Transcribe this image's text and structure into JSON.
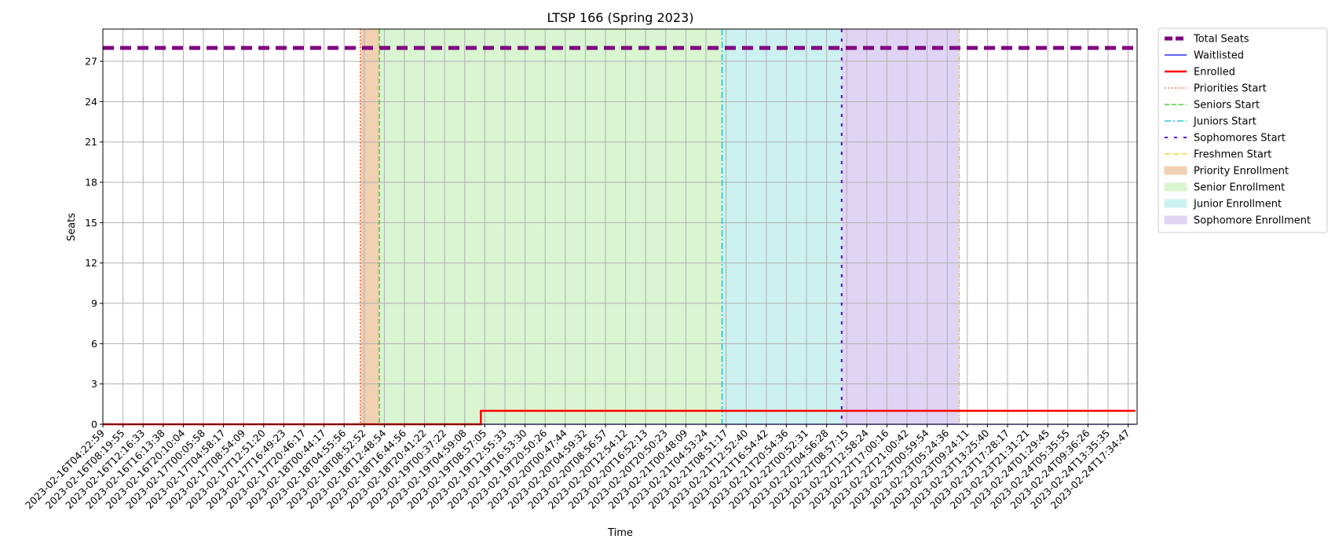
{
  "chart_data": {
    "type": "line",
    "title": "LTSP 166 (Spring 2023)",
    "xlabel": "Time",
    "ylabel": "Seats",
    "ylim": [
      0,
      29.4
    ],
    "yticks": [
      0,
      3,
      6,
      9,
      12,
      15,
      18,
      21,
      24,
      27
    ],
    "grid": true,
    "legend_position": "outside-right-top",
    "x_categories": [
      "2023-02-16T04:22:59",
      "2023-02-16T08:19:55",
      "2023-02-16T12:16:33",
      "2023-02-16T16:13:38",
      "2023-02-16T20:10:04",
      "2023-02-17T00:05:58",
      "2023-02-17T04:58:17",
      "2023-02-17T08:54:09",
      "2023-02-17T12:51:20",
      "2023-02-17T16:49:23",
      "2023-02-17T20:46:17",
      "2023-02-18T00:44:17",
      "2023-02-18T04:55:56",
      "2023-02-18T08:52:52",
      "2023-02-18T12:48:54",
      "2023-02-18T16:44:56",
      "2023-02-18T20:41:22",
      "2023-02-19T00:37:22",
      "2023-02-19T04:59:08",
      "2023-02-19T08:57:05",
      "2023-02-19T12:55:33",
      "2023-02-19T16:53:30",
      "2023-02-19T20:50:26",
      "2023-02-20T00:47:44",
      "2023-02-20T04:59:32",
      "2023-02-20T08:56:57",
      "2023-02-20T12:54:12",
      "2023-02-20T16:52:13",
      "2023-02-20T20:50:23",
      "2023-02-21T00:48:09",
      "2023-02-21T04:53:24",
      "2023-02-21T08:51:17",
      "2023-02-21T12:52:40",
      "2023-02-21T16:54:42",
      "2023-02-21T20:54:36",
      "2023-02-22T00:52:31",
      "2023-02-22T04:56:28",
      "2023-02-22T08:57:15",
      "2023-02-22T12:58:24",
      "2023-02-22T17:00:16",
      "2023-02-22T21:00:42",
      "2023-02-23T00:59:54",
      "2023-02-23T05:24:36",
      "2023-02-23T09:24:11",
      "2023-02-23T13:25:40",
      "2023-02-23T17:28:17",
      "2023-02-23T21:31:21",
      "2023-02-24T01:29:45",
      "2023-02-24T05:35:55",
      "2023-02-24T09:36:26",
      "2023-02-24T13:35:35",
      "2023-02-24T17:34:47"
    ],
    "series": [
      {
        "name": "Total Seats",
        "color": "#800080",
        "style": "dashed-thick",
        "points": [
          [
            0,
            28
          ],
          [
            51.35,
            28
          ]
        ]
      },
      {
        "name": "Waitlisted",
        "color": "#0000ff",
        "style": "solid-thin",
        "points": [
          [
            0,
            0
          ],
          [
            51.35,
            0
          ]
        ]
      },
      {
        "name": "Enrolled",
        "color": "#ff0000",
        "style": "solid-thick",
        "points": [
          [
            0,
            0
          ],
          [
            18.8,
            0
          ],
          [
            18.8,
            1
          ],
          [
            51.35,
            1
          ]
        ]
      }
    ],
    "events": [
      {
        "name": "Priorities Start",
        "x": 12.8,
        "color": "#ff2a00",
        "style": "dotted"
      },
      {
        "name": "Seniors Start",
        "x": 13.75,
        "color": "#22cc00",
        "style": "dashed"
      },
      {
        "name": "Juniors Start",
        "x": 30.8,
        "color": "#00bfcc",
        "style": "dashdot"
      },
      {
        "name": "Sophomores Start",
        "x": 36.75,
        "color": "#5500dd",
        "style": "loosedash"
      },
      {
        "name": "Freshmen Start",
        "x": 42.6,
        "color": "#e6cc00",
        "style": "dashdot-thin"
      }
    ],
    "regions": [
      {
        "name": "Priority Enrollment",
        "x0": 12.8,
        "x1": 13.75,
        "color": "#f2d0b3"
      },
      {
        "name": "Senior Enrollment",
        "x0": 13.75,
        "x1": 30.8,
        "color": "#d9f5d2"
      },
      {
        "name": "Junior Enrollment",
        "x0": 30.8,
        "x1": 36.75,
        "color": "#cdf1f1"
      },
      {
        "name": "Sophomore Enrollment",
        "x0": 36.75,
        "x1": 42.6,
        "color": "#e0d4f4"
      }
    ]
  }
}
